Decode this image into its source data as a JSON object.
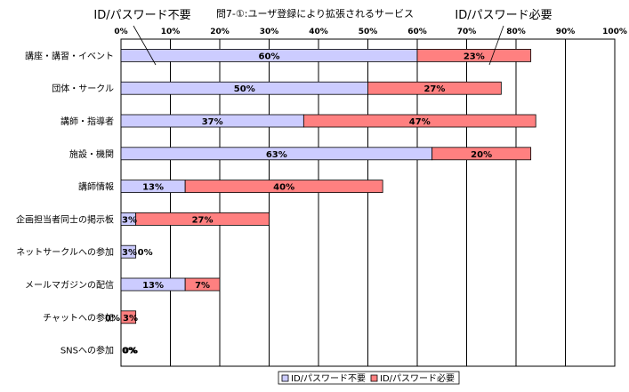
{
  "chart_data": {
    "type": "bar",
    "orientation": "horizontal",
    "stacked": true,
    "title": "問7-①:ユーザ登録により拡張されるサービス",
    "categories": [
      "講座・講習・イベント",
      "団体・サークル",
      "講師・指導者",
      "施設・機関",
      "講師情報",
      "企画担当者同士の掲示板",
      "ネットサークルへの参加",
      "メールマガジンの配信",
      "チャットへの参加",
      "SNSへの参加"
    ],
    "series": [
      {
        "name": "ID/パスワード不要",
        "color": "#ccccff",
        "values": [
          60,
          50,
          37,
          63,
          13,
          3,
          3,
          13,
          0,
          0
        ],
        "labels": [
          "60%",
          "50%",
          "37%",
          "63%",
          "13%",
          "3%",
          "3%",
          "13%",
          "0%",
          "0%"
        ]
      },
      {
        "name": "ID/パスワード必要",
        "color": "#ff8080",
        "values": [
          23,
          27,
          47,
          20,
          40,
          27,
          0,
          7,
          3,
          0
        ],
        "labels": [
          "23%",
          "27%",
          "47%",
          "20%",
          "40%",
          "27%",
          "0%",
          "7%",
          "3%",
          "0%"
        ]
      }
    ],
    "x_ticks": [
      "0%",
      "10%",
      "20%",
      "30%",
      "40%",
      "50%",
      "60%",
      "70%",
      "80%",
      "90%",
      "100%"
    ],
    "xlim": [
      0,
      100
    ],
    "grid": true,
    "legend": "bottom",
    "annotations": [
      {
        "text": "ID/パスワード不要"
      },
      {
        "text": "ID/パスワード必要"
      }
    ]
  }
}
